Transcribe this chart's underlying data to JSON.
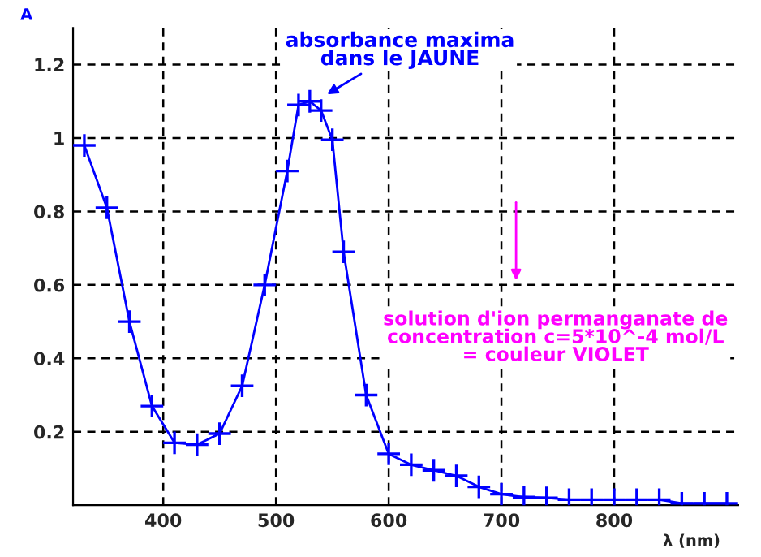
{
  "chart_data": {
    "type": "line",
    "xlabel": "λ (nm)",
    "ylabel": "A",
    "x": [
      330,
      350,
      370,
      390,
      410,
      430,
      450,
      470,
      490,
      510,
      520,
      530,
      540,
      550,
      560,
      580,
      600,
      620,
      640,
      660,
      680,
      700,
      720,
      740,
      760,
      780,
      800,
      820,
      840,
      860,
      880,
      900
    ],
    "series": [
      {
        "color": "#0000ff",
        "values": [
          0.98,
          0.81,
          0.5,
          0.27,
          0.17,
          0.165,
          0.195,
          0.325,
          0.6,
          0.91,
          1.09,
          1.1,
          1.075,
          0.995,
          0.69,
          0.3,
          0.14,
          0.11,
          0.095,
          0.08,
          0.05,
          0.03,
          0.022,
          0.02,
          0.015,
          0.015,
          0.015,
          0.015,
          0.015,
          0.005,
          0.005,
          0.005
        ]
      }
    ],
    "xlim": [
      320,
      910
    ],
    "ylim": [
      0,
      1.3
    ],
    "xticks": [
      400,
      500,
      600,
      700,
      800
    ],
    "yticks": [
      0.2,
      0.4,
      0.6,
      0.8,
      1,
      1.2
    ],
    "grid": true,
    "marker": "cross",
    "line_style": "solid",
    "legend": false,
    "annotations": [
      {
        "text": "absorbance maxima\ndans le JAUNE",
        "x": 535,
        "y": 1.1
      },
      "solution d'ion permanganate de\nconcentration c=5*10^-4 mol/L\n= couleur VIOLET"
    ]
  }
}
